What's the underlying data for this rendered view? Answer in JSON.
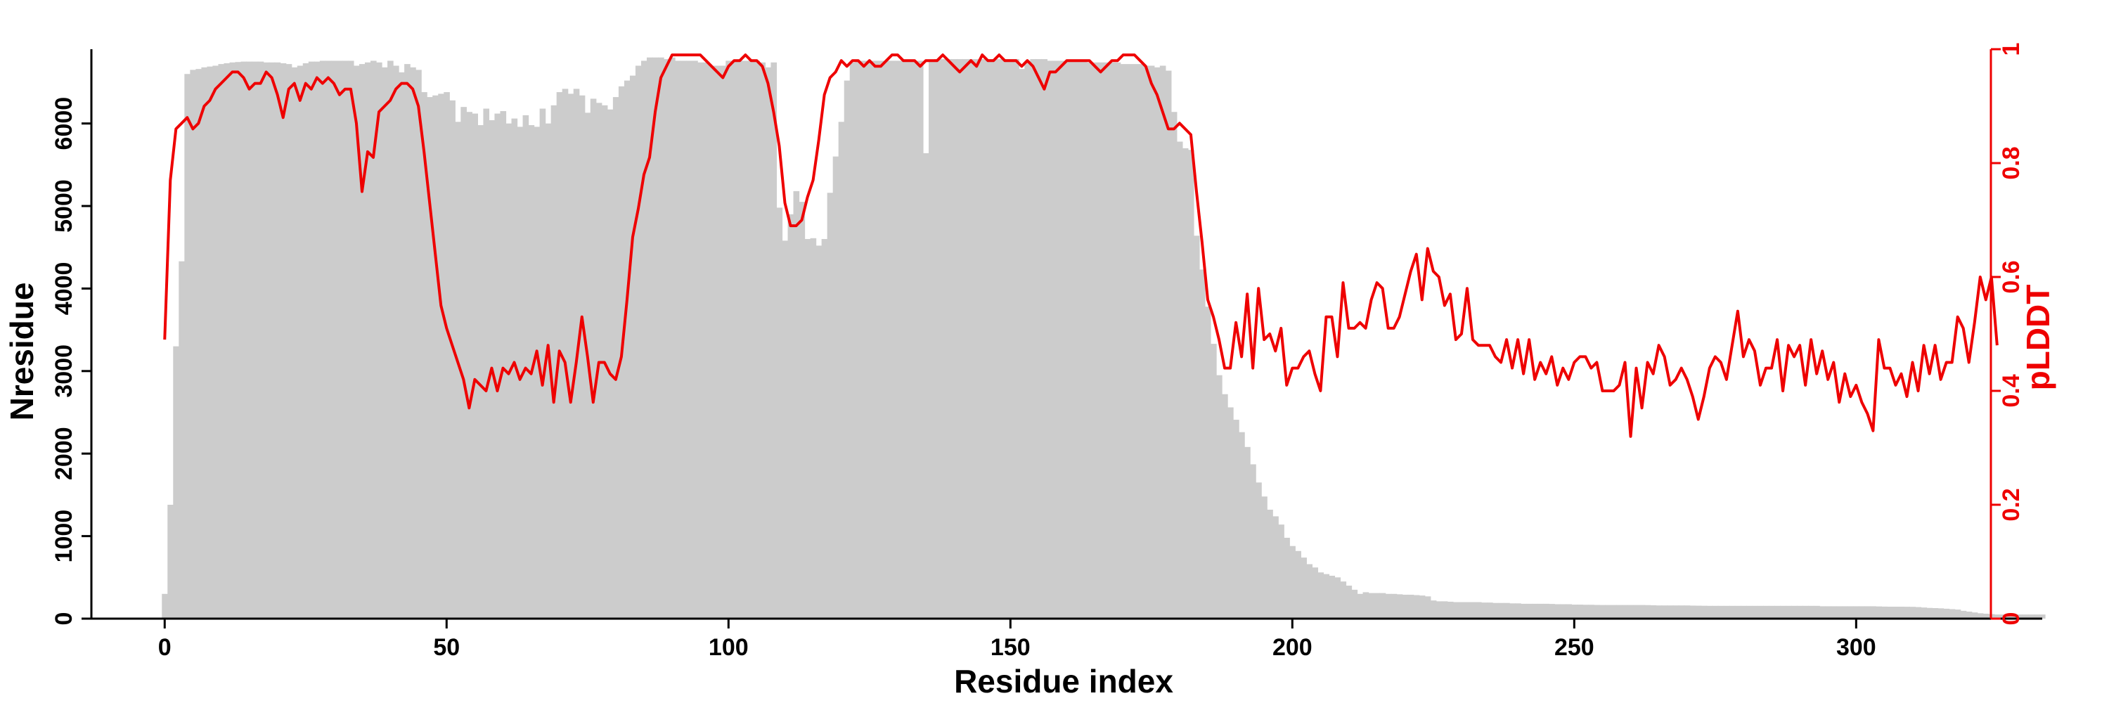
{
  "chart_data": {
    "type": "bar+line",
    "xlabel": "Residue index",
    "ylabel_left": "Nresidue",
    "ylabel_right": "pLDDT",
    "xlim": [
      -13,
      333
    ],
    "ylim_left": [
      0,
      6900
    ],
    "ylim_right": [
      0,
      1
    ],
    "x_ticks": [
      0,
      50,
      100,
      150,
      200,
      250,
      300
    ],
    "y_left_ticks": [
      0,
      1000,
      2000,
      3000,
      4000,
      5000,
      6000
    ],
    "y_right_ticks": [
      0,
      0.2,
      0.4,
      0.6,
      0.8,
      1
    ],
    "grid": false,
    "bar_color": "#cccccc",
    "line_color": "#ee0000",
    "series": [
      {
        "type": "bar",
        "axis": "left",
        "x_start": 0,
        "values": [
          300,
          1380,
          3300,
          4330,
          6600,
          6650,
          6660,
          6680,
          6690,
          6700,
          6720,
          6730,
          6740,
          6745,
          6750,
          6750,
          6750,
          6750,
          6740,
          6740,
          6740,
          6730,
          6720,
          6680,
          6700,
          6730,
          6750,
          6750,
          6760,
          6760,
          6760,
          6760,
          6760,
          6760,
          6700,
          6720,
          6740,
          6760,
          6740,
          6680,
          6760,
          6700,
          6620,
          6720,
          6680,
          6650,
          6380,
          6320,
          6340,
          6360,
          6380,
          6280,
          6020,
          6200,
          6140,
          6120,
          5980,
          6180,
          6040,
          6120,
          6150,
          6000,
          6060,
          5960,
          6100,
          5980,
          5960,
          6180,
          6000,
          6220,
          6380,
          6420,
          6360,
          6420,
          6340,
          6130,
          6300,
          6250,
          6220,
          6170,
          6320,
          6450,
          6520,
          6580,
          6700,
          6760,
          6800,
          6800,
          6800,
          6780,
          6800,
          6760,
          6760,
          6760,
          6760,
          6740,
          6740,
          6700,
          6700,
          6700,
          6760,
          6760,
          6760,
          6760,
          6760,
          6760,
          6740,
          6680,
          6740,
          4980,
          4580,
          4900,
          5180,
          5050,
          4600,
          4610,
          4520,
          4600,
          5160,
          5600,
          6020,
          6520,
          6740,
          6760,
          6760,
          6760,
          6760,
          6760,
          6760,
          6760,
          6760,
          6760,
          6760,
          6760,
          6760,
          5640,
          6760,
          6780,
          6780,
          6780,
          6780,
          6780,
          6780,
          6780,
          6780,
          6780,
          6780,
          6780,
          6780,
          6780,
          6780,
          6780,
          6660,
          6760,
          6780,
          6780,
          6780,
          6760,
          6760,
          6760,
          6760,
          6760,
          6760,
          6760,
          6740,
          6740,
          6740,
          6740,
          6740,
          6740,
          6720,
          6720,
          6720,
          6720,
          6700,
          6700,
          6680,
          6700,
          6640,
          6140,
          5780,
          5700,
          5680,
          4640,
          4230,
          3780,
          3330,
          2950,
          2720,
          2560,
          2410,
          2260,
          2080,
          1870,
          1650,
          1480,
          1320,
          1240,
          1140,
          980,
          880,
          820,
          740,
          660,
          620,
          560,
          540,
          520,
          500,
          450,
          400,
          350,
          300,
          320,
          310,
          310,
          310,
          300,
          300,
          295,
          290,
          290,
          285,
          280,
          270,
          220,
          210,
          210,
          205,
          200,
          200,
          200,
          200,
          200,
          195,
          195,
          190,
          190,
          190,
          185,
          185,
          180,
          180,
          180,
          180,
          180,
          178,
          175,
          175,
          175,
          170,
          170,
          168,
          168,
          166,
          165,
          165,
          165,
          165,
          165,
          165,
          165,
          165,
          164,
          162,
          160,
          160,
          160,
          160,
          160,
          160,
          158,
          157,
          156,
          155,
          155,
          155,
          155,
          155,
          155,
          155,
          155,
          155,
          155,
          155,
          155,
          155,
          155,
          155,
          155,
          155,
          155,
          155,
          155,
          150,
          150,
          150,
          150,
          150,
          150,
          150,
          150,
          150,
          150,
          148,
          146,
          145,
          145,
          145,
          144,
          143,
          140,
          135,
          130,
          128,
          125,
          120,
          115,
          110,
          95,
          85,
          75,
          65,
          60,
          55,
          50,
          50,
          50,
          50,
          50,
          50,
          50,
          50,
          50
        ]
      },
      {
        "type": "line",
        "axis": "right",
        "x_start": 0,
        "values": [
          0.49,
          0.77,
          0.86,
          0.87,
          0.88,
          0.86,
          0.87,
          0.9,
          0.91,
          0.93,
          0.94,
          0.95,
          0.96,
          0.96,
          0.95,
          0.93,
          0.94,
          0.94,
          0.96,
          0.95,
          0.92,
          0.88,
          0.93,
          0.94,
          0.91,
          0.94,
          0.93,
          0.95,
          0.94,
          0.95,
          0.94,
          0.92,
          0.93,
          0.93,
          0.87,
          0.75,
          0.82,
          0.81,
          0.89,
          0.9,
          0.91,
          0.93,
          0.94,
          0.94,
          0.93,
          0.9,
          0.82,
          0.73,
          0.64,
          0.55,
          0.51,
          0.48,
          0.45,
          0.42,
          0.37,
          0.42,
          0.41,
          0.4,
          0.44,
          0.4,
          0.44,
          0.43,
          0.45,
          0.42,
          0.44,
          0.43,
          0.47,
          0.41,
          0.48,
          0.38,
          0.47,
          0.45,
          0.38,
          0.45,
          0.53,
          0.46,
          0.38,
          0.45,
          0.45,
          0.43,
          0.42,
          0.46,
          0.56,
          0.67,
          0.72,
          0.78,
          0.81,
          0.89,
          0.95,
          0.97,
          0.99,
          0.99,
          0.99,
          0.99,
          0.99,
          0.99,
          0.98,
          0.97,
          0.96,
          0.95,
          0.97,
          0.98,
          0.98,
          0.99,
          0.98,
          0.98,
          0.97,
          0.94,
          0.89,
          0.83,
          0.73,
          0.69,
          0.69,
          0.7,
          0.74,
          0.77,
          0.84,
          0.92,
          0.95,
          0.96,
          0.98,
          0.97,
          0.98,
          0.98,
          0.97,
          0.98,
          0.97,
          0.97,
          0.98,
          0.99,
          0.99,
          0.98,
          0.98,
          0.98,
          0.97,
          0.98,
          0.98,
          0.98,
          0.99,
          0.98,
          0.97,
          0.96,
          0.97,
          0.98,
          0.97,
          0.99,
          0.98,
          0.98,
          0.99,
          0.98,
          0.98,
          0.98,
          0.97,
          0.98,
          0.97,
          0.95,
          0.93,
          0.96,
          0.96,
          0.97,
          0.98,
          0.98,
          0.98,
          0.98,
          0.98,
          0.97,
          0.96,
          0.97,
          0.98,
          0.98,
          0.99,
          0.99,
          0.99,
          0.98,
          0.97,
          0.94,
          0.92,
          0.89,
          0.86,
          0.86,
          0.87,
          0.86,
          0.85,
          0.75,
          0.66,
          0.56,
          0.53,
          0.49,
          0.44,
          0.44,
          0.52,
          0.46,
          0.57,
          0.44,
          0.58,
          0.49,
          0.5,
          0.47,
          0.51,
          0.41,
          0.44,
          0.44,
          0.46,
          0.47,
          0.43,
          0.4,
          0.53,
          0.53,
          0.46,
          0.59,
          0.51,
          0.51,
          0.52,
          0.51,
          0.56,
          0.59,
          0.58,
          0.51,
          0.51,
          0.53,
          0.57,
          0.61,
          0.64,
          0.56,
          0.65,
          0.61,
          0.6,
          0.55,
          0.57,
          0.49,
          0.5,
          0.58,
          0.49,
          0.48,
          0.48,
          0.48,
          0.46,
          0.45,
          0.49,
          0.44,
          0.49,
          0.43,
          0.49,
          0.42,
          0.45,
          0.43,
          0.46,
          0.41,
          0.44,
          0.42,
          0.45,
          0.46,
          0.46,
          0.44,
          0.45,
          0.4,
          0.4,
          0.4,
          0.41,
          0.45,
          0.32,
          0.44,
          0.37,
          0.45,
          0.43,
          0.48,
          0.46,
          0.41,
          0.42,
          0.44,
          0.42,
          0.39,
          0.35,
          0.39,
          0.44,
          0.46,
          0.45,
          0.42,
          0.48,
          0.54,
          0.46,
          0.49,
          0.47,
          0.41,
          0.44,
          0.44,
          0.49,
          0.4,
          0.48,
          0.46,
          0.48,
          0.41,
          0.49,
          0.43,
          0.47,
          0.42,
          0.45,
          0.38,
          0.43,
          0.39,
          0.41,
          0.38,
          0.36,
          0.33,
          0.49,
          0.44,
          0.44,
          0.41,
          0.43,
          0.39,
          0.45,
          0.4,
          0.48,
          0.43,
          0.48,
          0.42,
          0.45,
          0.45,
          0.53,
          0.51,
          0.45,
          0.52,
          0.6,
          0.56,
          0.6,
          0.48
        ]
      }
    ]
  }
}
